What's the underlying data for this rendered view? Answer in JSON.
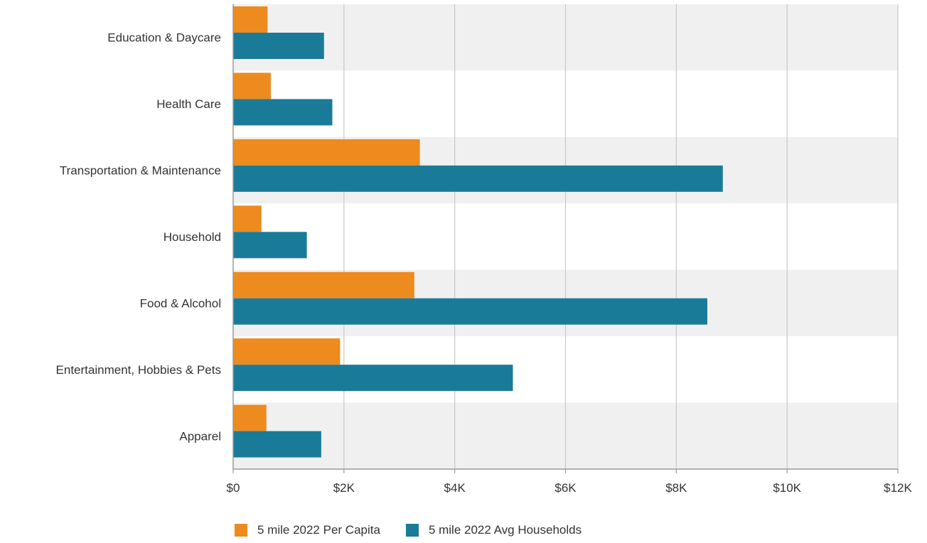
{
  "chart_data": {
    "type": "bar",
    "orientation": "horizontal",
    "categories": [
      "Education & Daycare",
      "Health Care",
      "Transportation & Maintenance",
      "Household",
      "Food & Alcohol",
      "Entertainment, Hobbies & Pets",
      "Apparel"
    ],
    "series": [
      {
        "name": "5 mile 2022 Per Capita",
        "color": "#ED8B1F",
        "values": [
          620,
          680,
          3370,
          510,
          3270,
          1930,
          600
        ]
      },
      {
        "name": "5 mile 2022 Avg Households",
        "color": "#1A7B99",
        "values": [
          1640,
          1790,
          8840,
          1330,
          8560,
          5050,
          1590
        ]
      }
    ],
    "xlim": [
      0,
      12000
    ],
    "xticks": [
      {
        "value": 0,
        "label": "$0"
      },
      {
        "value": 2000,
        "label": "$2K"
      },
      {
        "value": 4000,
        "label": "$4K"
      },
      {
        "value": 6000,
        "label": "$6K"
      },
      {
        "value": 8000,
        "label": "$8K"
      },
      {
        "value": 10000,
        "label": "$10K"
      },
      {
        "value": 12000,
        "label": "$12K"
      }
    ],
    "grid": true,
    "band_colors": [
      "#F0F0F0",
      "#FFFFFF"
    ],
    "legend_position": "bottom-left"
  }
}
